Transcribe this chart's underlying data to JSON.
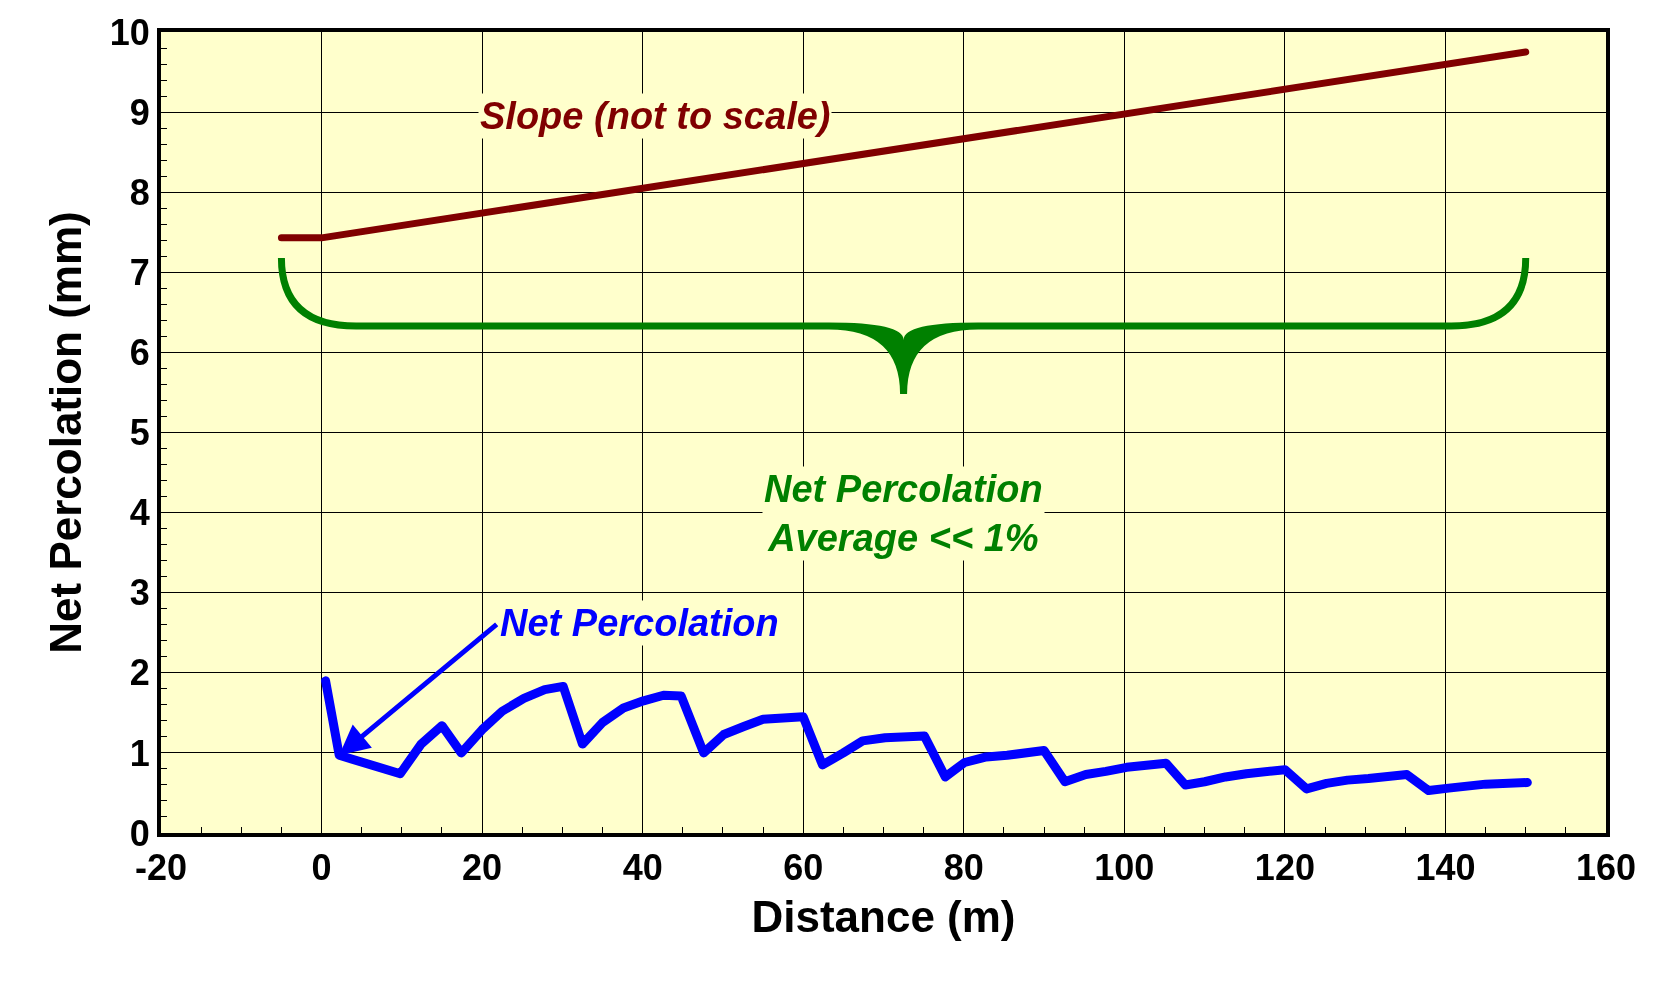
{
  "chart_data": {
    "type": "line",
    "xlabel": "Distance (m)",
    "ylabel": "Net Percolation (mm)",
    "xlim": [
      -20,
      160
    ],
    "xticks": [
      -20,
      0,
      20,
      40,
      60,
      80,
      100,
      120,
      140,
      160
    ],
    "ylim": [
      0,
      10
    ],
    "yticks": [
      0,
      1,
      2,
      3,
      4,
      5,
      6,
      7,
      8,
      9,
      10
    ],
    "grid": true,
    "legend": false,
    "marker": "none",
    "line_style": "solid",
    "series": [
      {
        "name": "Slope (not to scale)",
        "color": "#800000",
        "x": [
          -5,
          0,
          150
        ],
        "values": [
          7.43,
          7.43,
          9.75
        ]
      },
      {
        "name": "Net Percolation",
        "color": "#0000ff",
        "x": [
          0.5,
          2.2,
          9.8,
          12.4,
          15.0,
          17.4,
          20.0,
          22.5,
          25.2,
          27.8,
          30.1,
          32.5,
          35.0,
          37.6,
          40.1,
          42.6,
          44.8,
          47.6,
          50.1,
          52.6,
          55.0,
          60.0,
          62.4,
          65.0,
          67.4,
          70.2,
          75.1,
          77.7,
          80.1,
          82.8,
          85.4,
          90.0,
          92.6,
          95.2,
          97.7,
          100.3,
          105.2,
          107.6,
          110.0,
          112.6,
          115.2,
          120.0,
          122.7,
          125.2,
          127.8,
          130.4,
          135.2,
          137.9,
          140.4,
          145.0,
          150.2
        ],
        "values": [
          1.9,
          0.97,
          0.74,
          1.11,
          1.34,
          1.0,
          1.29,
          1.52,
          1.68,
          1.79,
          1.83,
          1.11,
          1.38,
          1.56,
          1.65,
          1.72,
          1.71,
          1.0,
          1.23,
          1.33,
          1.42,
          1.45,
          0.85,
          1.0,
          1.15,
          1.19,
          1.21,
          0.7,
          0.88,
          0.95,
          0.97,
          1.03,
          0.64,
          0.73,
          0.77,
          0.82,
          0.87,
          0.6,
          0.64,
          0.7,
          0.74,
          0.79,
          0.55,
          0.62,
          0.66,
          0.68,
          0.73,
          0.53,
          0.56,
          0.61,
          0.63
        ]
      }
    ],
    "annotations": [
      "Net Percolation\nAverage << 1%"
    ]
  }
}
